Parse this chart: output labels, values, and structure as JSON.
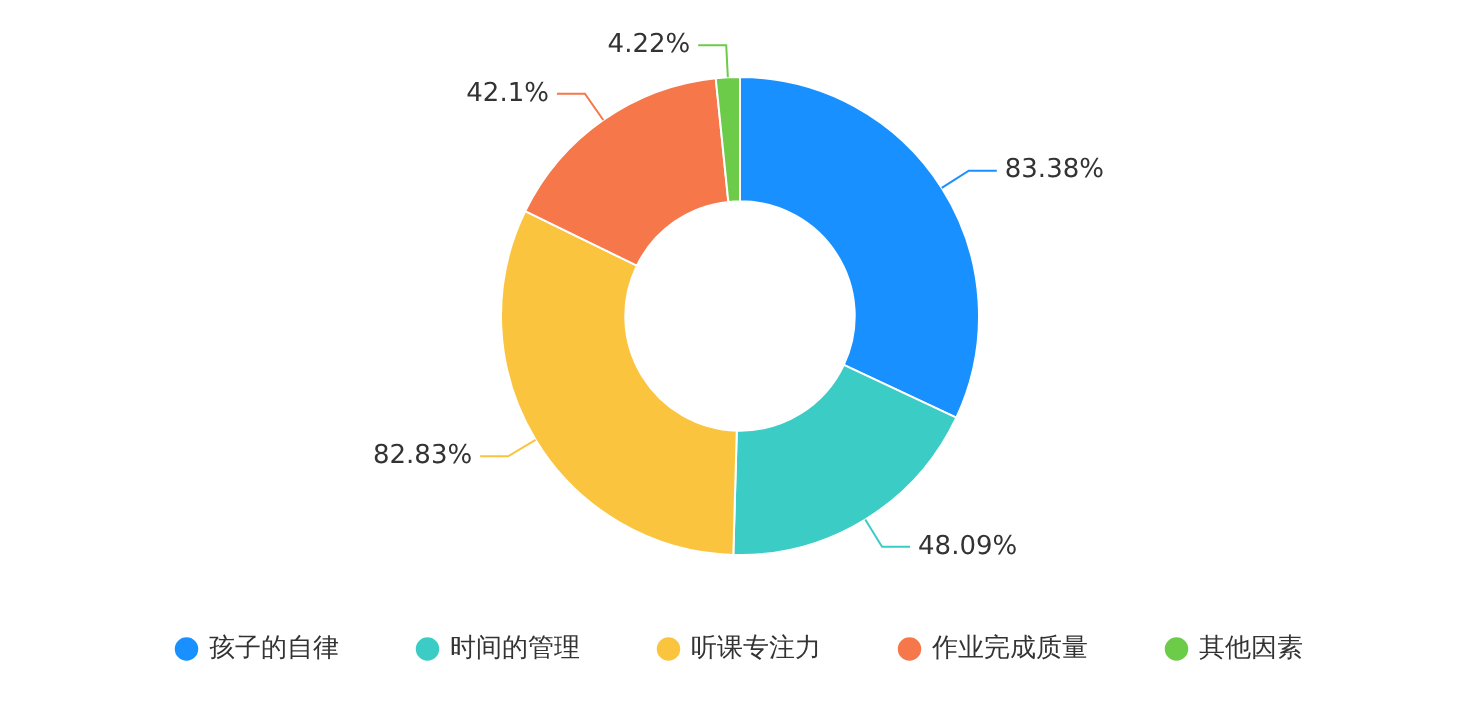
{
  "chart_data": {
    "type": "donut",
    "categories": [
      "孩子的自律",
      "时间的管理",
      "听课专注力",
      "作业完成质量",
      "其他因素"
    ],
    "values": [
      83.38,
      48.09,
      82.83,
      42.1,
      4.22
    ],
    "value_labels": [
      "83.38%",
      "48.09%",
      "82.83%",
      "42.1%",
      "4.22%"
    ],
    "colors": [
      "#1890ff",
      "#3cccc6",
      "#fbc43f",
      "#f5774a",
      "#6ccb48"
    ],
    "legend": "bottom"
  }
}
